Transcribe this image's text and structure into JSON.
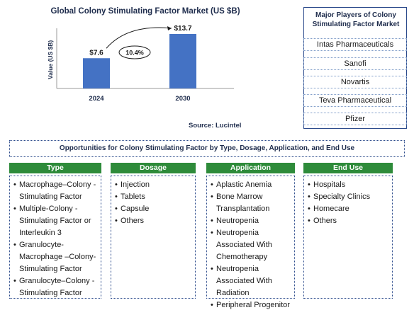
{
  "chart_data": {
    "type": "bar",
    "title": "Global Colony Stimulating Factor Market (US $B)",
    "ylabel": "Value (US $B)",
    "categories": [
      "2024",
      "2030"
    ],
    "values": [
      7.6,
      13.7
    ],
    "value_labels": [
      "$7.6",
      "$13.7"
    ],
    "cagr_label": "10.4%",
    "bar_color": "#4472c4",
    "ylim": [
      0,
      16
    ],
    "source": "Source: Lucintel"
  },
  "players": {
    "title": "Major Players of Colony Stimulating Factor Market",
    "items": [
      "Intas Pharmaceuticals",
      "Sanofi",
      "Novartis",
      "Teva Pharmaceutical",
      "Pfizer"
    ]
  },
  "opportunities": {
    "title": "Opportunities for Colony Stimulating Factor by Type, Dosage, Application, and End Use",
    "header_color": "#2e8b3a",
    "columns": [
      {
        "header": "Type",
        "items": [
          "Macrophage–Colony -Stimulating Factor",
          "Multiple-Colony -Stimulating Factor or Interleukin 3",
          "Granulocyte-Macrophage –Colony-Stimulating Factor",
          "Granulocyte–Colony -Stimulating Factor"
        ]
      },
      {
        "header": "Dosage",
        "items": [
          "Injection",
          "Tablets",
          "Capsule",
          "Others"
        ]
      },
      {
        "header": "Application",
        "items": [
          "Aplastic Anemia",
          "Bone Marrow Transplantation",
          "Neutropenia",
          "Neutropenia Associated With Chemotherapy",
          "Neutropenia Associated With Radiation",
          "Peripheral Progenitor Cell Transplantation"
        ]
      },
      {
        "header": "End Use",
        "items": [
          "Hospitals",
          "Specialty Clinics",
          "Homecare",
          "Others"
        ]
      }
    ]
  }
}
